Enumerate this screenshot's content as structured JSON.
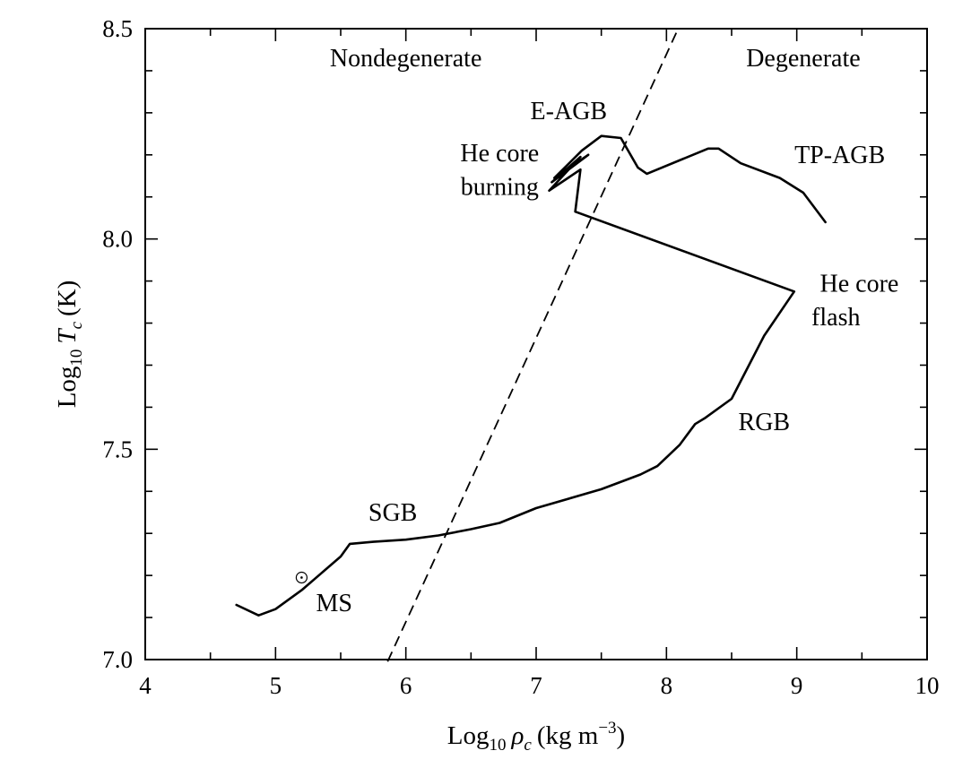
{
  "chart_data": {
    "type": "line",
    "xlabel": {
      "prefix": "Log",
      "sub": "10",
      "symbol": "ρ",
      "symsub": "c",
      "units": "(kg m",
      "unit_exp": "−3",
      "close": ")"
    },
    "ylabel": {
      "prefix": "Log",
      "sub": "10",
      "symbol": "T",
      "symsub": "c",
      "units": "(K)"
    },
    "xlim": [
      4,
      10
    ],
    "ylim": [
      7.0,
      8.5
    ],
    "x_ticks": [
      4,
      5,
      6,
      7,
      8,
      9,
      10
    ],
    "x_tick_labels": [
      "4",
      "5",
      "6",
      "7",
      "8",
      "9",
      "10"
    ],
    "y_ticks": [
      7.0,
      7.5,
      8.0,
      8.5
    ],
    "y_tick_labels": [
      "7.0",
      "7.5",
      "8.0",
      "8.5"
    ],
    "x_minor_step": 0.5,
    "y_minor_step": 0.1,
    "grid": false,
    "legend": "none",
    "series": [
      {
        "style": "solid",
        "points": [
          [
            4.7,
            7.13
          ],
          [
            4.87,
            7.105
          ],
          [
            5.0,
            7.12
          ],
          [
            5.2,
            7.165
          ],
          [
            5.35,
            7.205
          ],
          [
            5.5,
            7.245
          ],
          [
            5.57,
            7.275
          ],
          [
            5.75,
            7.28
          ],
          [
            6.0,
            7.285
          ],
          [
            6.25,
            7.295
          ],
          [
            6.5,
            7.31
          ],
          [
            6.72,
            7.325
          ],
          [
            7.0,
            7.36
          ],
          [
            7.5,
            7.405
          ],
          [
            7.8,
            7.44
          ],
          [
            7.93,
            7.46
          ],
          [
            8.1,
            7.51
          ],
          [
            8.22,
            7.56
          ],
          [
            8.3,
            7.575
          ],
          [
            8.5,
            7.62
          ],
          [
            8.6,
            7.68
          ],
          [
            8.75,
            7.77
          ],
          [
            8.98,
            7.875
          ],
          [
            7.3,
            8.065
          ],
          [
            7.34,
            8.165
          ],
          [
            7.1,
            8.115
          ],
          [
            7.34,
            8.195
          ],
          [
            7.12,
            8.135
          ],
          [
            7.4,
            8.2
          ],
          [
            7.14,
            8.145
          ],
          [
            7.35,
            8.21
          ],
          [
            7.5,
            8.245
          ],
          [
            7.65,
            8.24
          ],
          [
            7.78,
            8.17
          ],
          [
            7.85,
            8.155
          ],
          [
            8.32,
            8.215
          ],
          [
            8.4,
            8.215
          ],
          [
            8.57,
            8.18
          ],
          [
            8.87,
            8.145
          ],
          [
            9.05,
            8.11
          ],
          [
            9.22,
            8.04
          ]
        ]
      },
      {
        "style": "dashed",
        "points": [
          [
            5.86,
            6.995
          ],
          [
            8.09,
            8.5
          ]
        ]
      }
    ],
    "annotations": [
      {
        "text": "Nondegenerate",
        "x": 6.0,
        "y": 8.41,
        "anchor": "middle"
      },
      {
        "text": "Degenerate",
        "x": 9.05,
        "y": 8.41,
        "anchor": "middle"
      },
      {
        "text": "E-AGB",
        "x": 7.25,
        "y": 8.285,
        "anchor": "middle"
      },
      {
        "text": "He core",
        "x": 6.72,
        "y": 8.185,
        "anchor": "middle"
      },
      {
        "text": "burning",
        "x": 6.72,
        "y": 8.105,
        "anchor": "middle"
      },
      {
        "text": "TP-AGB",
        "x": 9.33,
        "y": 8.18,
        "anchor": "middle"
      },
      {
        "text": "He core",
        "x": 9.48,
        "y": 7.875,
        "anchor": "middle"
      },
      {
        "text": "flash",
        "x": 9.3,
        "y": 7.795,
        "anchor": "middle"
      },
      {
        "text": "RGB",
        "x": 8.75,
        "y": 7.545,
        "anchor": "middle"
      },
      {
        "text": "SGB",
        "x": 5.9,
        "y": 7.33,
        "anchor": "middle"
      },
      {
        "text": "MS",
        "x": 5.45,
        "y": 7.115,
        "anchor": "middle"
      }
    ],
    "markers": [
      {
        "symbol": "sun",
        "x": 5.2,
        "y": 7.195
      }
    ]
  }
}
